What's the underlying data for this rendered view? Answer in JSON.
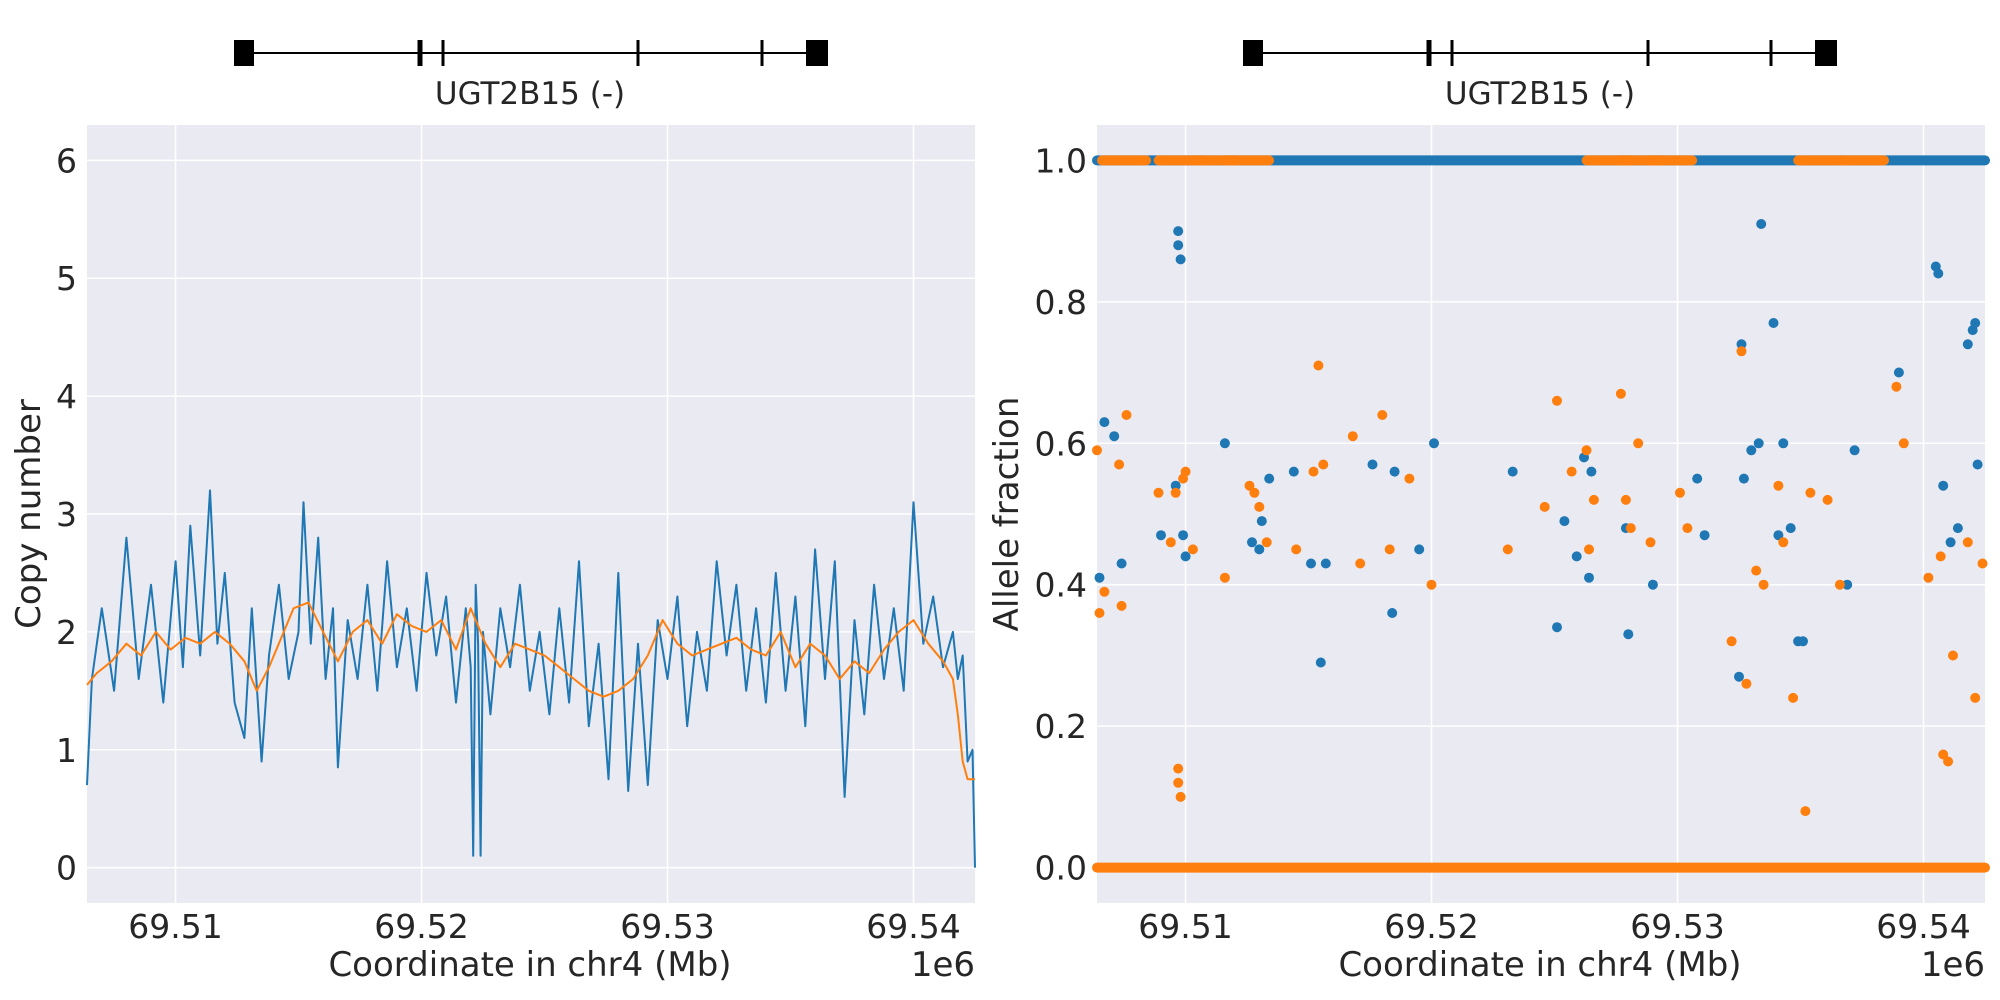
{
  "figure": {
    "gene_label_left": "UGT2B15 (-)",
    "gene_label_right": "UGT2B15 (-)"
  },
  "colors": {
    "panel_bg": "#eaeaf2",
    "grid": "#ffffff",
    "series_blue": "#1f77b4",
    "series_orange": "#ff7f0e",
    "gene_model": "#000000",
    "text": "#262626"
  },
  "chart_data": [
    {
      "type": "line",
      "xlabel": "Coordinate in chr4 (Mb)",
      "ylabel": "Copy number",
      "x_offset_text": "1e6",
      "xlim": [
        69.5064,
        69.5425
      ],
      "ylim": [
        -0.3,
        6.3
      ],
      "xticks": [
        69.51,
        69.52,
        69.53,
        69.54
      ],
      "xtick_labels": [
        "69.51",
        "69.52",
        "69.53",
        "69.54"
      ],
      "yticks": [
        0,
        1,
        2,
        3,
        4,
        5,
        6
      ],
      "ytick_labels": [
        "0",
        "1",
        "2",
        "3",
        "4",
        "5",
        "6"
      ],
      "grid": true,
      "series": [
        {
          "color": "#1f77b4",
          "x": [
            69.5064,
            69.5066,
            69.507,
            69.5075,
            69.508,
            69.5085,
            69.509,
            69.5095,
            69.51,
            69.5103,
            69.5106,
            69.511,
            69.5114,
            69.5117,
            69.512,
            69.5124,
            69.5128,
            69.5131,
            69.5135,
            69.5138,
            69.5142,
            69.5146,
            69.515,
            69.5152,
            69.5155,
            69.5158,
            69.5161,
            69.5164,
            69.5166,
            69.517,
            69.5174,
            69.5178,
            69.5182,
            69.5186,
            69.519,
            69.5194,
            69.5198,
            69.5202,
            69.5206,
            69.521,
            69.5214,
            69.5218,
            69.522,
            69.5221,
            69.5222,
            69.5223,
            69.5224,
            69.5225,
            69.5228,
            69.5232,
            69.5236,
            69.524,
            69.5244,
            69.5248,
            69.5252,
            69.5256,
            69.526,
            69.5264,
            69.5268,
            69.5272,
            69.5276,
            69.528,
            69.5284,
            69.5288,
            69.5292,
            69.5296,
            69.53,
            69.5304,
            69.5308,
            69.5312,
            69.5316,
            69.532,
            69.5324,
            69.5328,
            69.5332,
            69.5336,
            69.534,
            69.5344,
            69.5348,
            69.5352,
            69.5356,
            69.536,
            69.5364,
            69.5368,
            69.5372,
            69.5376,
            69.538,
            69.5384,
            69.5388,
            69.5392,
            69.5396,
            69.54,
            69.5402,
            69.5404,
            69.5408,
            69.5412,
            69.5416,
            69.5418,
            69.542,
            69.5422,
            69.5424,
            69.5425
          ],
          "y": [
            0.7,
            1.6,
            2.2,
            1.5,
            2.8,
            1.6,
            2.4,
            1.4,
            2.6,
            1.7,
            2.9,
            1.8,
            3.2,
            1.9,
            2.5,
            1.4,
            1.1,
            2.2,
            0.9,
            1.8,
            2.4,
            1.6,
            2.0,
            3.1,
            1.9,
            2.8,
            1.6,
            2.2,
            0.85,
            2.1,
            1.6,
            2.4,
            1.5,
            2.6,
            1.7,
            2.2,
            1.5,
            2.5,
            1.8,
            2.3,
            1.4,
            2.2,
            1.7,
            0.1,
            2.4,
            1.9,
            0.1,
            2.0,
            1.3,
            2.2,
            1.7,
            2.4,
            1.5,
            2.0,
            1.3,
            2.2,
            1.4,
            2.6,
            1.2,
            1.9,
            0.75,
            2.5,
            0.65,
            1.9,
            0.7,
            2.1,
            1.6,
            2.3,
            1.2,
            2.0,
            1.5,
            2.6,
            1.8,
            2.4,
            1.5,
            2.2,
            1.4,
            2.5,
            1.5,
            2.3,
            1.2,
            2.7,
            1.6,
            2.6,
            0.6,
            2.1,
            1.3,
            2.4,
            1.6,
            2.2,
            1.5,
            3.1,
            2.5,
            1.9,
            2.3,
            1.7,
            2.0,
            1.6,
            1.8,
            0.9,
            1.0,
            0.0
          ]
        },
        {
          "color": "#ff7f0e",
          "x": [
            69.5064,
            69.5068,
            69.5074,
            69.508,
            69.5086,
            69.5092,
            69.5098,
            69.5104,
            69.511,
            69.5116,
            69.5122,
            69.5128,
            69.5133,
            69.5138,
            69.5143,
            69.5148,
            69.5154,
            69.516,
            69.5166,
            69.5172,
            69.5178,
            69.5184,
            69.519,
            69.5196,
            69.5202,
            69.5208,
            69.5214,
            69.522,
            69.5226,
            69.5232,
            69.5238,
            69.5244,
            69.525,
            69.5256,
            69.5262,
            69.5268,
            69.5274,
            69.528,
            69.5286,
            69.5292,
            69.5298,
            69.5304,
            69.531,
            69.5316,
            69.5322,
            69.5328,
            69.5334,
            69.534,
            69.5346,
            69.5352,
            69.5358,
            69.5364,
            69.537,
            69.5376,
            69.5382,
            69.5388,
            69.5394,
            69.54,
            69.5406,
            69.5412,
            69.5416,
            69.5418,
            69.542,
            69.5422,
            69.5425
          ],
          "y": [
            1.55,
            1.65,
            1.75,
            1.9,
            1.8,
            2.0,
            1.85,
            1.95,
            1.9,
            2.0,
            1.9,
            1.75,
            1.5,
            1.7,
            1.95,
            2.2,
            2.25,
            2.0,
            1.75,
            2.0,
            2.1,
            1.9,
            2.15,
            2.05,
            2.0,
            2.1,
            1.85,
            2.2,
            1.9,
            1.7,
            1.9,
            1.85,
            1.8,
            1.7,
            1.6,
            1.5,
            1.45,
            1.5,
            1.6,
            1.8,
            2.1,
            1.9,
            1.8,
            1.85,
            1.9,
            1.95,
            1.85,
            1.8,
            2.0,
            1.7,
            1.9,
            1.8,
            1.6,
            1.75,
            1.65,
            1.85,
            2.0,
            2.1,
            1.9,
            1.75,
            1.6,
            1.3,
            0.9,
            0.75,
            0.75
          ]
        }
      ]
    },
    {
      "type": "scatter",
      "xlabel": "Coordinate in chr4 (Mb)",
      "ylabel": "Allele fraction",
      "x_offset_text": "1e6",
      "xlim": [
        69.5064,
        69.5425
      ],
      "ylim": [
        -0.05,
        1.05
      ],
      "xticks": [
        69.51,
        69.52,
        69.53,
        69.54
      ],
      "xtick_labels": [
        "69.51",
        "69.52",
        "69.53",
        "69.54"
      ],
      "yticks": [
        0.0,
        0.2,
        0.4,
        0.6,
        0.8,
        1.0
      ],
      "ytick_labels": [
        "0.0",
        "0.2",
        "0.4",
        "0.6",
        "0.8",
        "1.0"
      ],
      "grid": true,
      "series": [
        {
          "color": "#1f77b4",
          "x": [
            69.5065,
            69.5067,
            69.5071,
            69.5074,
            69.509,
            69.5096,
            69.5097,
            69.5097,
            69.5098,
            69.5099,
            69.51,
            69.5116,
            69.5127,
            69.513,
            69.5131,
            69.5134,
            69.5144,
            69.5151,
            69.5155,
            69.5157,
            69.5176,
            69.5184,
            69.5185,
            69.5195,
            69.5201,
            69.5233,
            69.5251,
            69.5254,
            69.5259,
            69.5262,
            69.5264,
            69.5265,
            69.5279,
            69.528,
            69.529,
            69.5308,
            69.5311,
            69.5325,
            69.5326,
            69.5327,
            69.533,
            69.5333,
            69.5334,
            69.5339,
            69.5341,
            69.5343,
            69.5346,
            69.5349,
            69.5351,
            69.5369,
            69.5372,
            69.539,
            69.5405,
            69.5406,
            69.5408,
            69.5411,
            69.5414,
            69.5418,
            69.542,
            69.5421,
            69.5422
          ],
          "y": [
            0.41,
            0.63,
            0.61,
            0.43,
            0.47,
            0.54,
            0.9,
            0.88,
            0.86,
            0.47,
            0.44,
            0.6,
            0.46,
            0.45,
            0.49,
            0.55,
            0.56,
            0.43,
            0.29,
            0.43,
            0.57,
            0.36,
            0.56,
            0.45,
            0.6,
            0.56,
            0.34,
            0.49,
            0.44,
            0.58,
            0.41,
            0.56,
            0.48,
            0.33,
            0.4,
            0.55,
            0.47,
            0.27,
            0.74,
            0.55,
            0.59,
            0.6,
            0.91,
            0.77,
            0.47,
            0.6,
            0.48,
            0.32,
            0.32,
            0.4,
            0.59,
            0.7,
            0.85,
            0.84,
            0.54,
            0.46,
            0.48,
            0.74,
            0.76,
            0.77,
            0.57
          ]
        },
        {
          "color": "#ff7f0e",
          "x": [
            69.5064,
            69.5065,
            69.5067,
            69.5073,
            69.5074,
            69.5076,
            69.5089,
            69.5094,
            69.5096,
            69.5097,
            69.5097,
            69.5098,
            69.5099,
            69.51,
            69.5103,
            69.5116,
            69.5126,
            69.5128,
            69.513,
            69.5133,
            69.5145,
            69.5152,
            69.5154,
            69.5156,
            69.5168,
            69.5171,
            69.518,
            69.5183,
            69.5191,
            69.52,
            69.5231,
            69.5246,
            69.5251,
            69.5257,
            69.5263,
            69.5264,
            69.5266,
            69.5277,
            69.5279,
            69.5281,
            69.5284,
            69.5289,
            69.5301,
            69.5304,
            69.5322,
            69.5326,
            69.5328,
            69.5332,
            69.5335,
            69.5341,
            69.5343,
            69.5347,
            69.5352,
            69.5354,
            69.5361,
            69.5366,
            69.5389,
            69.5392,
            69.5402,
            69.5407,
            69.5408,
            69.541,
            69.5412,
            69.5418,
            69.5421,
            69.5424
          ],
          "y": [
            0.59,
            0.36,
            0.39,
            0.57,
            0.37,
            0.64,
            0.53,
            0.46,
            0.53,
            0.14,
            0.12,
            0.1,
            0.55,
            0.56,
            0.45,
            0.41,
            0.54,
            0.53,
            0.51,
            0.46,
            0.45,
            0.56,
            0.71,
            0.57,
            0.61,
            0.43,
            0.64,
            0.45,
            0.55,
            0.4,
            0.45,
            0.51,
            0.66,
            0.56,
            0.59,
            0.45,
            0.52,
            0.67,
            0.52,
            0.48,
            0.6,
            0.46,
            0.53,
            0.48,
            0.32,
            0.73,
            0.26,
            0.42,
            0.4,
            0.54,
            0.46,
            0.24,
            0.08,
            0.53,
            0.52,
            0.4,
            0.68,
            0.6,
            0.41,
            0.44,
            0.16,
            0.15,
            0.3,
            0.46,
            0.24,
            0.43
          ]
        }
      ]
    }
  ]
}
